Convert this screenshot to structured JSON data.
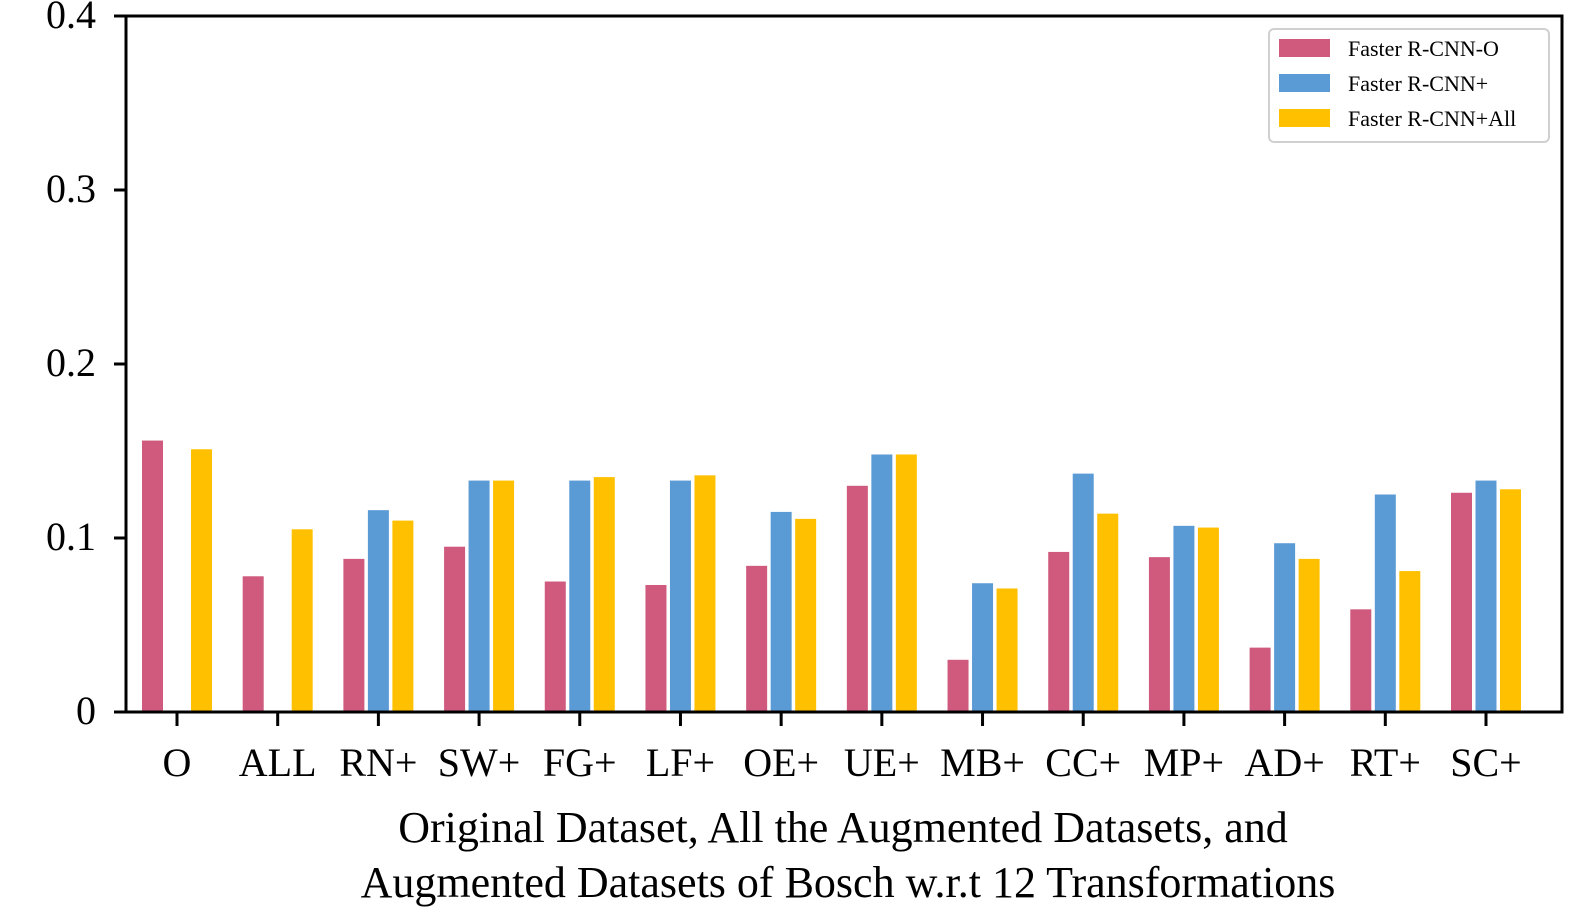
{
  "chart_data": {
    "type": "bar",
    "categories": [
      "O",
      "ALL",
      "RN+",
      "SW+",
      "FG+",
      "LF+",
      "OE+",
      "UE+",
      "MB+",
      "CC+",
      "MP+",
      "AD+",
      "RT+",
      "SC+"
    ],
    "series": [
      {
        "name": "Faster R-CNN-O",
        "color": "#d05a7e",
        "values": [
          0.156,
          0.078,
          0.088,
          0.095,
          0.075,
          0.073,
          0.084,
          0.13,
          0.03,
          0.092,
          0.089,
          0.037,
          0.059,
          0.126
        ]
      },
      {
        "name": "Faster R-CNN+",
        "color": "#5b9bd5",
        "values": [
          null,
          null,
          0.116,
          0.133,
          0.133,
          0.133,
          0.115,
          0.148,
          0.074,
          0.137,
          0.107,
          0.097,
          0.125,
          0.133
        ]
      },
      {
        "name": "Faster R-CNN+All",
        "color": "#ffc000",
        "values": [
          0.151,
          0.105,
          0.11,
          0.133,
          0.135,
          0.136,
          0.111,
          0.148,
          0.071,
          0.114,
          0.106,
          0.088,
          0.081,
          0.128
        ]
      }
    ],
    "xlabel": [
      "Original Dataset, All the Augmented Datasets, and",
      "Augmented Datasets of Bosch w.r.t 12 Transformations"
    ],
    "ylabel": "",
    "ylim": [
      0,
      0.4
    ],
    "yticks": [
      0,
      0.1,
      0.2,
      0.3,
      0.4
    ],
    "ytick_labels": [
      "0",
      "0.1",
      "0.2",
      "0.3",
      "0.4"
    ],
    "grid": false,
    "legend_position": "top-right"
  }
}
